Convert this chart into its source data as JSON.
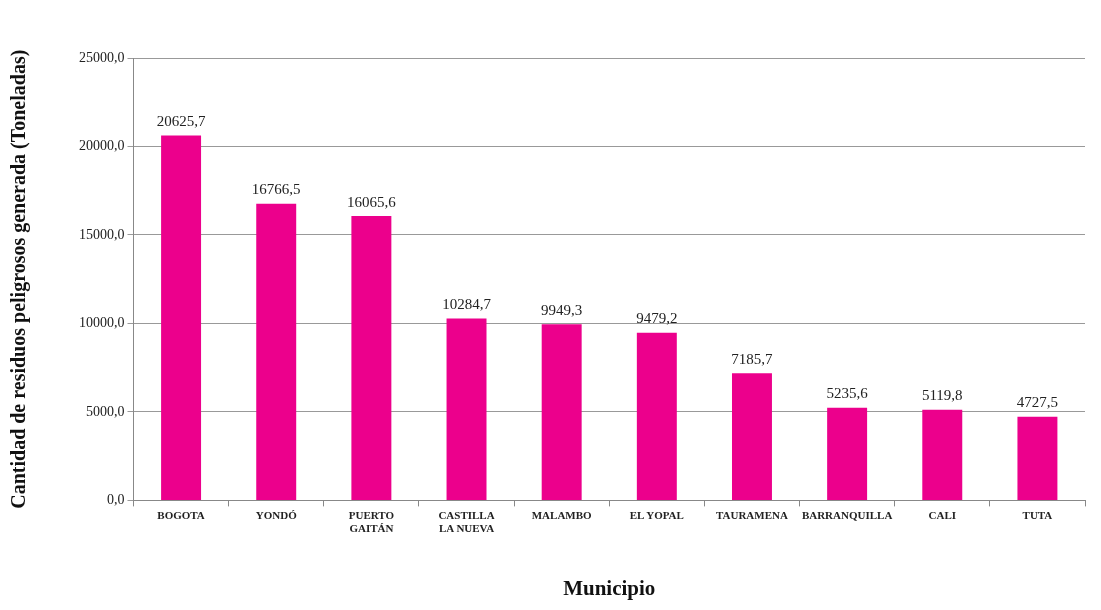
{
  "chart_data": {
    "type": "bar",
    "xlabel": "Municipio",
    "ylabel": "Cantidad de residuos peligrosos generada (Toneladas)",
    "categories": [
      "BOGOTA",
      "YONDÓ",
      "PUERTO\nGAITÁN",
      "CASTILLA\nLA NUEVA",
      "MALAMBO",
      "EL YOPAL",
      "TAURAMENA",
      "BARRANQUILLA",
      "CALI",
      "TUTA"
    ],
    "values": [
      20625.7,
      16766.5,
      16065.6,
      10284.7,
      9949.3,
      9479.2,
      7185.7,
      5235.6,
      5119.8,
      4727.5
    ],
    "value_labels": [
      "20625,7",
      "16766,5",
      "16065,6",
      "10284,7",
      "9949,3",
      "9479,2",
      "7185,7",
      "5235,6",
      "5119,8",
      "4727,5"
    ],
    "color": "#ec008c",
    "ylim": [
      0,
      25000
    ],
    "yticks": [
      {
        "value": 0,
        "label": "0,0"
      },
      {
        "value": 5000,
        "label": "5000,0"
      },
      {
        "value": 10000,
        "label": "10000,0"
      },
      {
        "value": 15000,
        "label": "15000,0"
      },
      {
        "value": 20000,
        "label": "20000,0"
      },
      {
        "value": 25000,
        "label": "25000,0"
      }
    ],
    "grid": "y",
    "legend": false
  }
}
